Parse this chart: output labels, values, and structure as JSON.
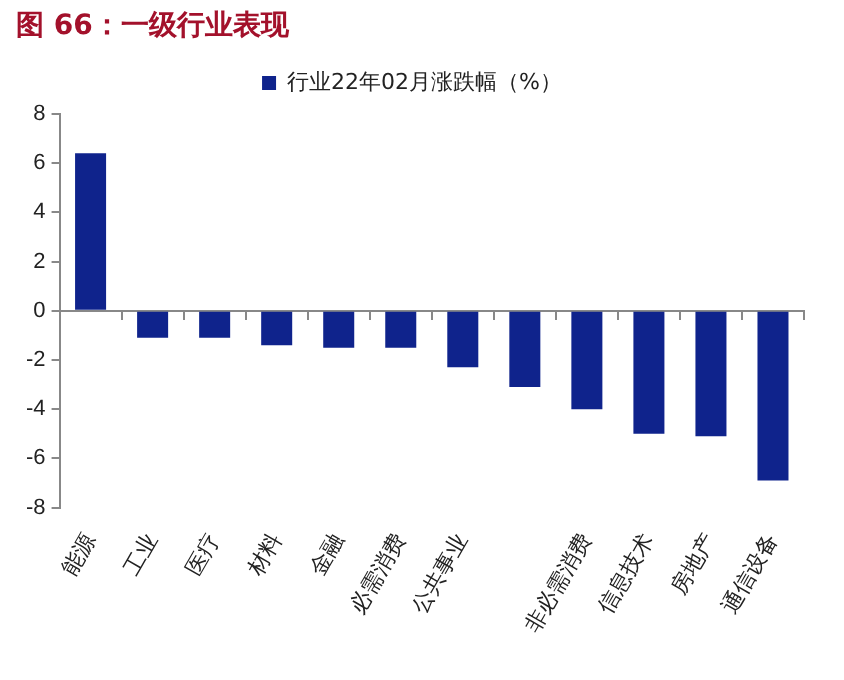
{
  "chart_data": {
    "type": "bar",
    "title": "图 66：一级行业表现",
    "categories": [
      "能源",
      "工业",
      "医疗",
      "材料",
      "金融",
      "必需消费",
      "公共事业",
      null,
      "非必需消费",
      "信息技术",
      "房地产",
      "通信设备"
    ],
    "series": [
      {
        "name": "行业22年02月涨跌幅（%）",
        "color": "#0f238c",
        "values": [
          6.4,
          -1.1,
          -1.1,
          -1.4,
          -1.5,
          -1.5,
          -2.3,
          -3.1,
          -4.0,
          -5.0,
          -5.1,
          -6.9
        ]
      }
    ],
    "ylim": [
      -8,
      8
    ],
    "yticks": [
      -8,
      -6,
      -4,
      -2,
      0,
      2,
      4,
      6,
      8
    ],
    "legend": "top"
  }
}
